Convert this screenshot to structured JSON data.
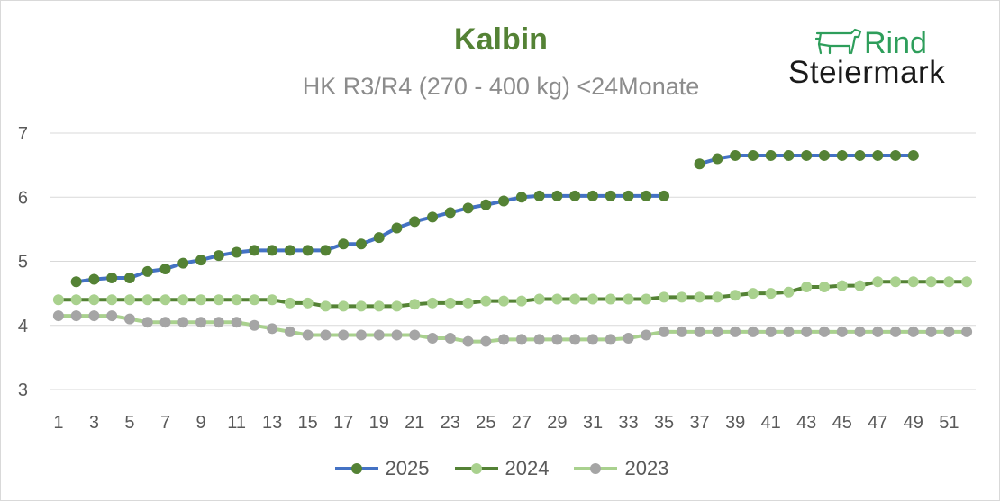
{
  "header": {
    "title": "Kalbin",
    "subtitle": "HK R3/R4 (270 - 400 kg) <24Monate"
  },
  "logo": {
    "line1": "Rind",
    "line2": "Steiermark",
    "icon": "cow-icon",
    "color": "#2e9e5b"
  },
  "chart_data": {
    "type": "line",
    "title": "Kalbin",
    "subtitle": "HK R3/R4 (270 - 400 kg) <24Monate",
    "xlabel": "",
    "ylabel": "",
    "x": [
      1,
      2,
      3,
      4,
      5,
      6,
      7,
      8,
      9,
      10,
      11,
      12,
      13,
      14,
      15,
      16,
      17,
      18,
      19,
      20,
      21,
      22,
      23,
      24,
      25,
      26,
      27,
      28,
      29,
      30,
      31,
      32,
      33,
      34,
      35,
      36,
      37,
      38,
      39,
      40,
      41,
      42,
      43,
      44,
      45,
      46,
      47,
      48,
      49,
      50,
      51,
      52
    ],
    "x_tick_labels": [
      "1",
      "3",
      "5",
      "7",
      "9",
      "11",
      "13",
      "15",
      "17",
      "19",
      "21",
      "23",
      "25",
      "27",
      "29",
      "31",
      "33",
      "35",
      "37",
      "39",
      "41",
      "43",
      "45",
      "47",
      "49",
      "51"
    ],
    "y_tick_labels": [
      "3",
      "4",
      "5",
      "6",
      "7"
    ],
    "xlim": [
      1,
      52
    ],
    "ylim": [
      3,
      7
    ],
    "grid": "horizontal",
    "legend_position": "bottom",
    "series": [
      {
        "name": "2025",
        "line_color": "#4472c4",
        "marker_color": "#548235",
        "values": [
          null,
          4.68,
          4.72,
          4.74,
          4.74,
          4.84,
          4.88,
          4.97,
          5.02,
          5.09,
          5.14,
          5.17,
          5.17,
          5.17,
          5.17,
          5.17,
          5.27,
          5.27,
          5.37,
          5.52,
          5.62,
          5.69,
          5.76,
          5.83,
          5.88,
          5.94,
          6.0,
          6.02,
          6.02,
          6.02,
          6.02,
          6.02,
          6.02,
          6.02,
          6.02,
          null,
          6.52,
          6.6,
          6.65,
          6.65,
          6.65,
          6.65,
          6.65,
          6.65,
          6.65,
          6.65,
          6.65,
          6.65,
          6.65,
          null,
          null,
          null
        ]
      },
      {
        "name": "2024",
        "line_color": "#548235",
        "marker_color": "#a9d18e",
        "values": [
          4.4,
          4.4,
          4.4,
          4.4,
          4.4,
          4.4,
          4.4,
          4.4,
          4.4,
          4.4,
          4.4,
          4.4,
          4.4,
          4.35,
          4.35,
          4.3,
          4.3,
          4.3,
          4.3,
          4.3,
          4.33,
          4.35,
          4.35,
          4.35,
          4.38,
          4.38,
          4.38,
          4.41,
          4.41,
          4.41,
          4.41,
          4.41,
          4.41,
          4.41,
          4.44,
          4.44,
          4.44,
          4.44,
          4.47,
          4.5,
          4.5,
          4.52,
          4.6,
          4.6,
          4.62,
          4.62,
          4.68,
          4.68,
          4.68,
          4.68,
          4.68,
          4.68
        ]
      },
      {
        "name": "2023",
        "line_color": "#a9d18e",
        "marker_color": "#a5a5a5",
        "values": [
          4.15,
          4.15,
          4.15,
          4.15,
          4.1,
          4.05,
          4.05,
          4.05,
          4.05,
          4.05,
          4.05,
          4.0,
          3.95,
          3.9,
          3.85,
          3.85,
          3.85,
          3.85,
          3.85,
          3.85,
          3.85,
          3.8,
          3.8,
          3.75,
          3.75,
          3.78,
          3.78,
          3.78,
          3.78,
          3.78,
          3.78,
          3.78,
          3.8,
          3.85,
          3.9,
          3.9,
          3.9,
          3.9,
          3.9,
          3.9,
          3.9,
          3.9,
          3.9,
          3.9,
          3.9,
          3.9,
          3.9,
          3.9,
          3.9,
          3.9,
          3.9,
          3.9
        ]
      }
    ]
  }
}
